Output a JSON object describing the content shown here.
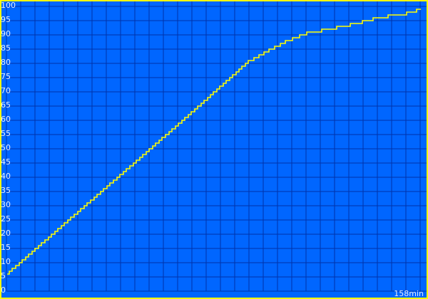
{
  "chart_data": {
    "type": "line",
    "title": "",
    "xlabel": "",
    "ylabel": "",
    "x_end_label": "158min",
    "xlim": [
      0,
      158
    ],
    "ylim": [
      0,
      100
    ],
    "y_ticks": [
      "0",
      "5",
      "10",
      "15",
      "20",
      "25",
      "30",
      "35",
      "40",
      "45",
      "50",
      "55",
      "60",
      "65",
      "70",
      "75",
      "80",
      "85",
      "90",
      "95",
      "100"
    ],
    "grid": true,
    "step": true,
    "series": [
      {
        "x": [
          0.3,
          24.8,
          52,
          76,
          79.3,
          92.3,
          100.2,
          106.5,
          115.2,
          122,
          133.7,
          142,
          152.8,
          158.3
        ],
        "y": [
          6,
          25.75,
          47.5,
          67,
          69.75,
          80.5,
          84.5,
          87.5,
          90.75,
          91.75,
          94,
          96,
          97.5,
          99
        ]
      }
    ],
    "colors": {
      "background": "#0066ff",
      "grid": "#0033aa",
      "line": "#ffff00",
      "frame": "#ffff00",
      "text": "#e8ecff"
    }
  }
}
